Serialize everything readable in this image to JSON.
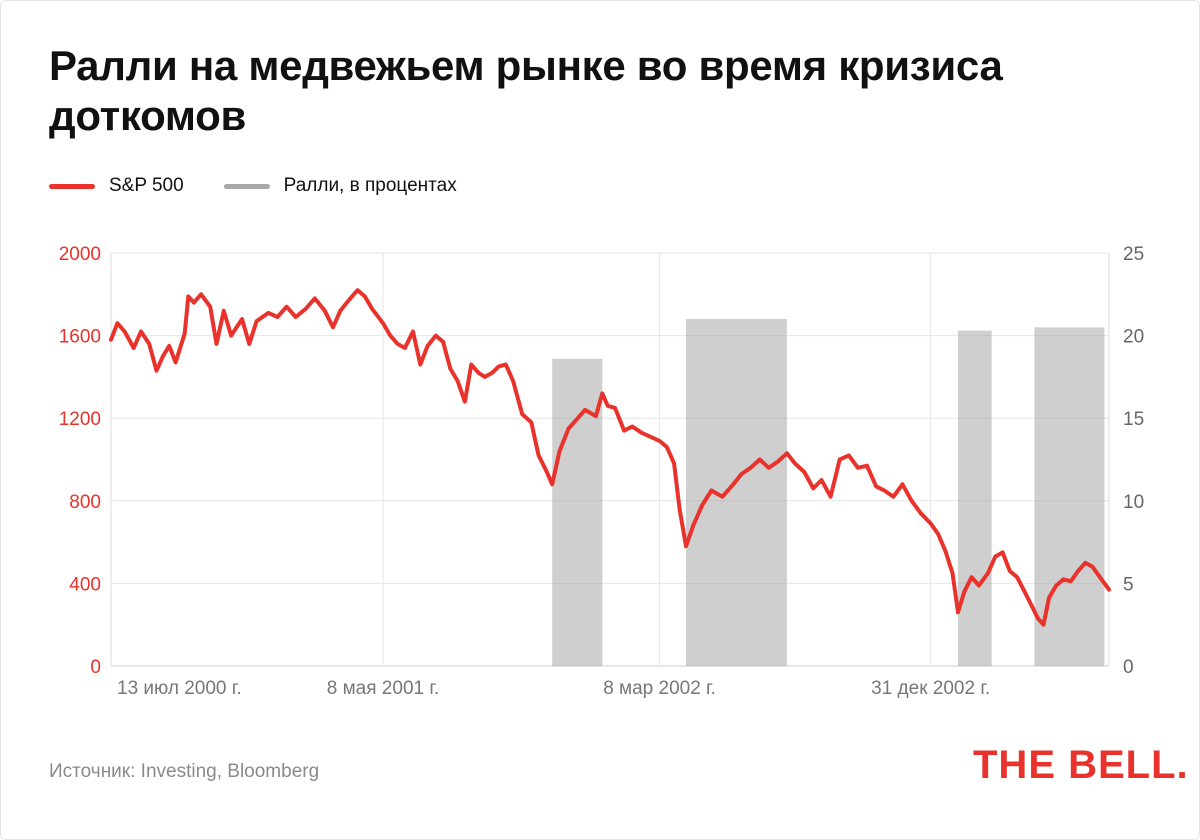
{
  "header": {
    "title": "Ралли на медвежьем рынке во время кризиса доткомов"
  },
  "legend": [
    {
      "label": "S&P 500",
      "color": "#e8322b"
    },
    {
      "label": "Ралли, в процентах",
      "color": "#a8a8a8"
    }
  ],
  "footer": {
    "source": "Источник: Investing, Bloomberg",
    "logo": "THE BELL."
  },
  "chart_data": {
    "type": "line",
    "grid": true,
    "left_axis": {
      "label": "",
      "ylim": [
        0,
        2000
      ],
      "ticks": [
        "0",
        "400",
        "800",
        "1200",
        "1600",
        "2000"
      ],
      "color": "#e8322b"
    },
    "right_axis": {
      "label": "",
      "ylim": [
        0,
        25
      ],
      "ticks": [
        "0",
        "5",
        "10",
        "15",
        "20",
        "25"
      ],
      "color": "#666666"
    },
    "x_axis": {
      "range": [
        "2000-07-13",
        "2003-07-15"
      ],
      "tick_labels": [
        "13 июл 2000 г.",
        "8 мая 2001 г.",
        "8 мар 2002 г.",
        "31 дек 2002 г."
      ],
      "tick_dates": [
        "2000-07-13",
        "2001-05-08",
        "2002-03-08",
        "2002-12-31"
      ]
    },
    "series": [
      {
        "name": "S&P 500",
        "color": "#e8322b",
        "axis": "left",
        "points": [
          [
            "2000-07-13",
            1580
          ],
          [
            "2000-07-20",
            1660
          ],
          [
            "2000-07-28",
            1620
          ],
          [
            "2000-08-07",
            1540
          ],
          [
            "2000-08-15",
            1620
          ],
          [
            "2000-08-24",
            1560
          ],
          [
            "2000-09-01",
            1430
          ],
          [
            "2000-09-08",
            1500
          ],
          [
            "2000-09-15",
            1550
          ],
          [
            "2000-09-22",
            1470
          ],
          [
            "2000-10-02",
            1610
          ],
          [
            "2000-10-06",
            1790
          ],
          [
            "2000-10-12",
            1760
          ],
          [
            "2000-10-20",
            1800
          ],
          [
            "2000-10-30",
            1740
          ],
          [
            "2000-11-06",
            1560
          ],
          [
            "2000-11-14",
            1720
          ],
          [
            "2000-11-22",
            1600
          ],
          [
            "2000-12-04",
            1680
          ],
          [
            "2000-12-12",
            1560
          ],
          [
            "2000-12-20",
            1670
          ],
          [
            "2001-01-02",
            1710
          ],
          [
            "2001-01-12",
            1690
          ],
          [
            "2001-01-22",
            1740
          ],
          [
            "2001-02-01",
            1690
          ],
          [
            "2001-02-12",
            1730
          ],
          [
            "2001-02-22",
            1780
          ],
          [
            "2001-03-05",
            1720
          ],
          [
            "2001-03-14",
            1640
          ],
          [
            "2001-03-22",
            1720
          ],
          [
            "2001-04-02",
            1780
          ],
          [
            "2001-04-10",
            1820
          ],
          [
            "2001-04-18",
            1790
          ],
          [
            "2001-04-26",
            1730
          ],
          [
            "2001-05-08",
            1660
          ],
          [
            "2001-05-16",
            1600
          ],
          [
            "2001-05-24",
            1560
          ],
          [
            "2001-06-01",
            1540
          ],
          [
            "2001-06-10",
            1620
          ],
          [
            "2001-06-18",
            1460
          ],
          [
            "2001-06-26",
            1550
          ],
          [
            "2001-07-05",
            1600
          ],
          [
            "2001-07-13",
            1570
          ],
          [
            "2001-07-21",
            1440
          ],
          [
            "2001-07-29",
            1380
          ],
          [
            "2001-08-06",
            1280
          ],
          [
            "2001-08-13",
            1460
          ],
          [
            "2001-08-21",
            1420
          ],
          [
            "2001-08-28",
            1400
          ],
          [
            "2001-09-05",
            1420
          ],
          [
            "2001-09-12",
            1450
          ],
          [
            "2001-09-20",
            1460
          ],
          [
            "2001-09-28",
            1380
          ],
          [
            "2001-10-08",
            1220
          ],
          [
            "2001-10-18",
            1180
          ],
          [
            "2001-10-26",
            1020
          ],
          [
            "2001-11-04",
            940
          ],
          [
            "2001-11-10",
            880
          ],
          [
            "2001-11-18",
            1040
          ],
          [
            "2001-11-28",
            1150
          ],
          [
            "2001-12-06",
            1190
          ],
          [
            "2001-12-16",
            1240
          ],
          [
            "2001-12-28",
            1210
          ],
          [
            "2002-01-04",
            1320
          ],
          [
            "2002-01-10",
            1260
          ],
          [
            "2002-01-18",
            1250
          ],
          [
            "2002-01-28",
            1140
          ],
          [
            "2002-02-06",
            1160
          ],
          [
            "2002-02-16",
            1130
          ],
          [
            "2002-02-26",
            1110
          ],
          [
            "2002-03-08",
            1090
          ],
          [
            "2002-03-16",
            1060
          ],
          [
            "2002-03-24",
            980
          ],
          [
            "2002-03-30",
            760
          ],
          [
            "2002-04-06",
            580
          ],
          [
            "2002-04-14",
            680
          ],
          [
            "2002-04-24",
            780
          ],
          [
            "2002-05-04",
            850
          ],
          [
            "2002-05-16",
            820
          ],
          [
            "2002-05-28",
            880
          ],
          [
            "2002-06-06",
            930
          ],
          [
            "2002-06-16",
            960
          ],
          [
            "2002-06-26",
            1000
          ],
          [
            "2002-07-06",
            960
          ],
          [
            "2002-07-16",
            990
          ],
          [
            "2002-07-26",
            1030
          ],
          [
            "2002-08-04",
            980
          ],
          [
            "2002-08-14",
            940
          ],
          [
            "2002-08-24",
            860
          ],
          [
            "2002-09-02",
            900
          ],
          [
            "2002-09-12",
            820
          ],
          [
            "2002-09-22",
            1000
          ],
          [
            "2002-10-02",
            1020
          ],
          [
            "2002-10-12",
            960
          ],
          [
            "2002-10-22",
            970
          ],
          [
            "2002-11-01",
            870
          ],
          [
            "2002-11-10",
            850
          ],
          [
            "2002-11-20",
            820
          ],
          [
            "2002-11-30",
            880
          ],
          [
            "2002-12-10",
            800
          ],
          [
            "2002-12-20",
            740
          ],
          [
            "2002-12-31",
            690
          ],
          [
            "2003-01-08",
            640
          ],
          [
            "2003-01-16",
            560
          ],
          [
            "2003-01-24",
            450
          ],
          [
            "2003-01-30",
            260
          ],
          [
            "2003-02-06",
            360
          ],
          [
            "2003-02-14",
            430
          ],
          [
            "2003-02-22",
            390
          ],
          [
            "2003-03-04",
            450
          ],
          [
            "2003-03-12",
            530
          ],
          [
            "2003-03-20",
            550
          ],
          [
            "2003-03-28",
            460
          ],
          [
            "2003-04-05",
            430
          ],
          [
            "2003-04-12",
            370
          ],
          [
            "2003-04-20",
            300
          ],
          [
            "2003-04-28",
            230
          ],
          [
            "2003-05-04",
            200
          ],
          [
            "2003-05-10",
            330
          ],
          [
            "2003-05-18",
            390
          ],
          [
            "2003-05-26",
            420
          ],
          [
            "2003-06-03",
            410
          ],
          [
            "2003-06-11",
            460
          ],
          [
            "2003-06-19",
            500
          ],
          [
            "2003-06-27",
            480
          ],
          [
            "2003-07-05",
            430
          ],
          [
            "2003-07-15",
            370
          ]
        ]
      },
      {
        "name": "Ралли, в процентах",
        "color": "#a8a8a8",
        "axis": "right",
        "type": "bar",
        "bars": [
          {
            "start": "2001-11-10",
            "end": "2002-01-04",
            "value": 18.6
          },
          {
            "start": "2002-04-06",
            "end": "2002-07-26",
            "value": 21.0
          },
          {
            "start": "2003-01-30",
            "end": "2003-03-08",
            "value": 20.3
          },
          {
            "start": "2003-04-24",
            "end": "2003-07-10",
            "value": 20.5
          }
        ]
      }
    ]
  }
}
